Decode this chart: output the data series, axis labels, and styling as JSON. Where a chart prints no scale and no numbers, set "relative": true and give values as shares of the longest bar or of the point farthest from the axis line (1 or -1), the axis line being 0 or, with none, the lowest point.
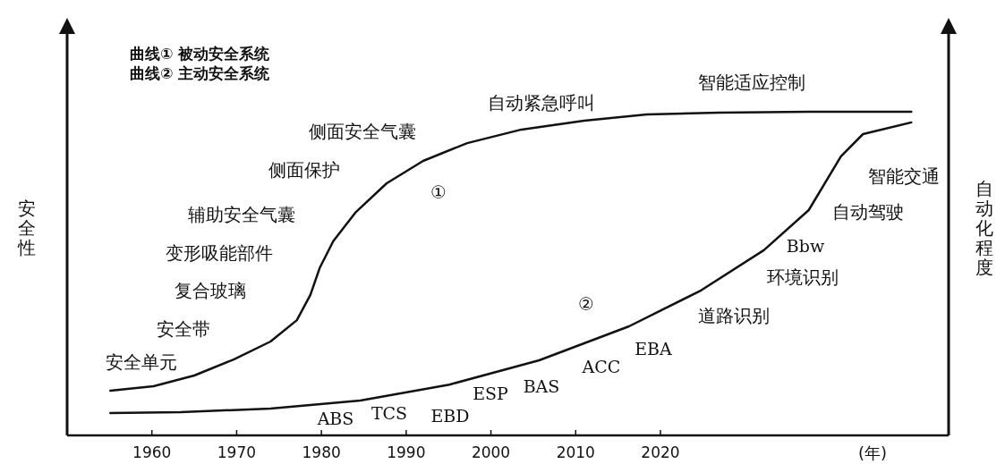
{
  "chart_data": {
    "type": "line",
    "relative": true,
    "ylabel": "安全性",
    "y2label": "自动化程度",
    "xlabel": "(年)",
    "xlim": [
      1950,
      2054
    ],
    "xticks": [
      1960,
      1970,
      1980,
      1990,
      2000,
      2010,
      2020
    ],
    "grid": false,
    "marker": "none",
    "line_style": "solid",
    "series": [
      {
        "color": "#111111",
        "x": [
          1955.1,
          1960.2,
          1965,
          1969.7,
          1974,
          1977.1,
          1978.7,
          1979.8,
          1981.4,
          1984,
          1987.7,
          1992,
          1997.2,
          2003.6,
          2011,
          2018.4,
          2026.9,
          2037.5,
          2049.6
        ],
        "values": [
          0.138,
          0.152,
          0.185,
          0.235,
          0.29,
          0.356,
          0.434,
          0.517,
          0.6,
          0.688,
          0.779,
          0.848,
          0.903,
          0.945,
          0.972,
          0.992,
          0.997,
          1.0,
          1.0
        ]
      },
      {
        "color": "#111111",
        "x": [
          1955.1,
          1963.4,
          1974,
          1984.6,
          1995.1,
          2005.7,
          2016.3,
          2024.8,
          2032.2,
          2037.5,
          2041.3,
          2043.9,
          2049.6
        ],
        "values": [
          0.069,
          0.072,
          0.083,
          0.108,
          0.157,
          0.232,
          0.337,
          0.448,
          0.572,
          0.696,
          0.862,
          0.931,
          0.967
        ]
      }
    ],
    "annotations": [
      "曲线① 被动安全系统",
      "曲线② 主动安全系统",
      "①",
      "②",
      "安全单元",
      "安全带",
      "复合玻璃",
      "变形吸能部件",
      "辅助安全气囊",
      "侧面保护",
      "侧面安全气囊",
      "自动紧急呼叫",
      "智能适应控制",
      "ABS",
      "TCS",
      "EBD",
      "ESP",
      "BAS",
      "ACC",
      "EBA",
      "道路识别",
      "环境识别",
      "Bbw",
      "自动驾驶",
      "智能交通"
    ]
  }
}
